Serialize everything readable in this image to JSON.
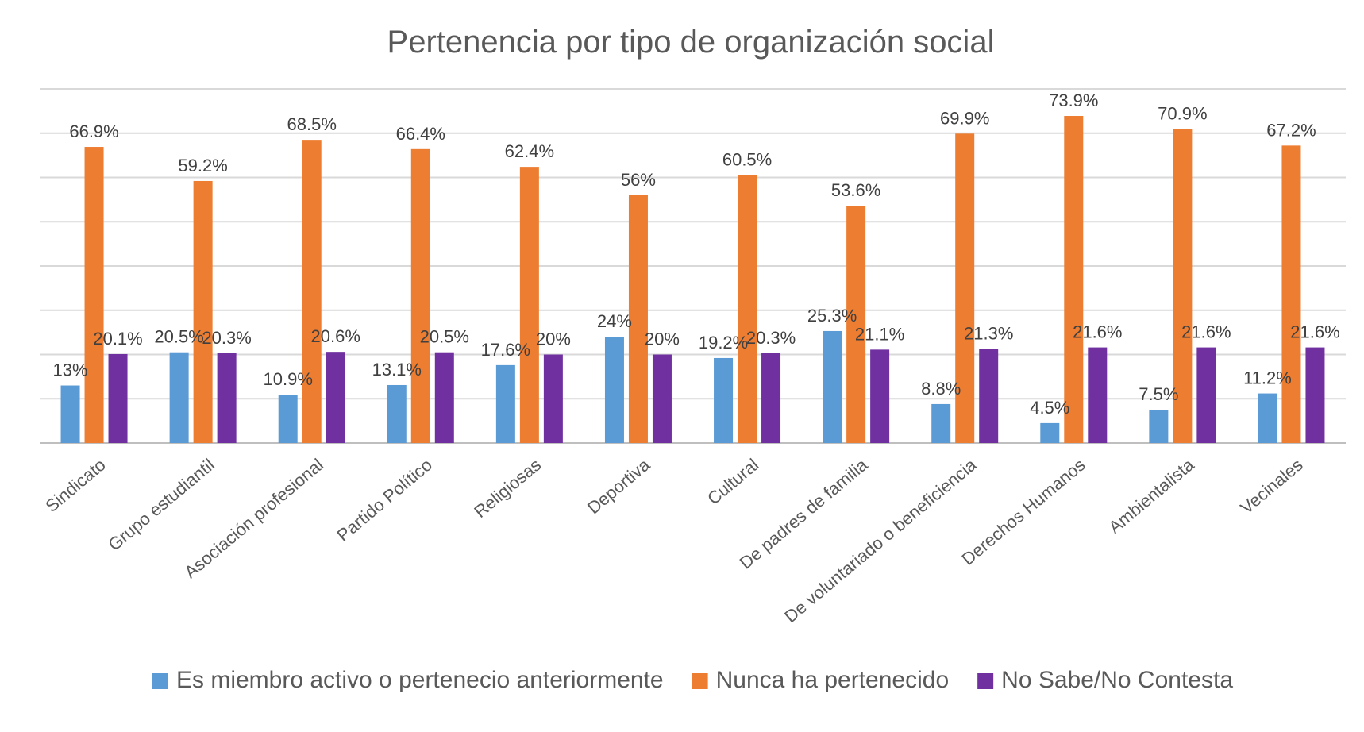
{
  "chart_data": {
    "type": "bar",
    "title": "Pertenencia por tipo de organización social",
    "xlabel": "",
    "ylabel": "",
    "ylim": [
      0,
      80
    ],
    "grid": true,
    "legend_position": "bottom",
    "categories": [
      "Sindicato",
      "Grupo estudiantil",
      "Asociación profesional",
      "Partido Político",
      "Religiosas",
      "Deportiva",
      "Cultural",
      "De padres de familia",
      "De voluntariado o beneficiencia",
      "Derechos Humanos",
      "Ambientalista",
      "Vecinales"
    ],
    "series": [
      {
        "name": "Es miembro activo o pertenecio anteriormente",
        "color": "#5b9bd5",
        "values": [
          13,
          20.5,
          10.9,
          13.1,
          17.6,
          24,
          19.2,
          25.3,
          8.8,
          4.5,
          7.5,
          11.2
        ],
        "labels": [
          "13%",
          "20.5%",
          "10.9%",
          "13.1%",
          "17.6%",
          "24%",
          "19.2%",
          "25.3%",
          "8.8%",
          "4.5%",
          "7.5%",
          "11.2%"
        ]
      },
      {
        "name": "Nunca ha pertenecido",
        "color": "#ed7d31",
        "values": [
          66.9,
          59.2,
          68.5,
          66.4,
          62.4,
          56,
          60.5,
          53.6,
          69.9,
          73.9,
          70.9,
          67.2
        ],
        "labels": [
          "66.9%",
          "59.2%",
          "68.5%",
          "66.4%",
          "62.4%",
          "56%",
          "60.5%",
          "53.6%",
          "69.9%",
          "73.9%",
          "70.9%",
          "67.2%"
        ]
      },
      {
        "name": "No Sabe/No Contesta",
        "color": "#7030a0",
        "values": [
          20.1,
          20.3,
          20.6,
          20.5,
          20,
          20,
          20.3,
          21.1,
          21.3,
          21.6,
          21.6,
          21.6
        ],
        "labels": [
          "20.1%",
          "20.3%",
          "20.6%",
          "20.5%",
          "20%",
          "20%",
          "20.3%",
          "21.1%",
          "21.3%",
          "21.6%",
          "21.6%",
          "21.6%"
        ]
      }
    ]
  }
}
